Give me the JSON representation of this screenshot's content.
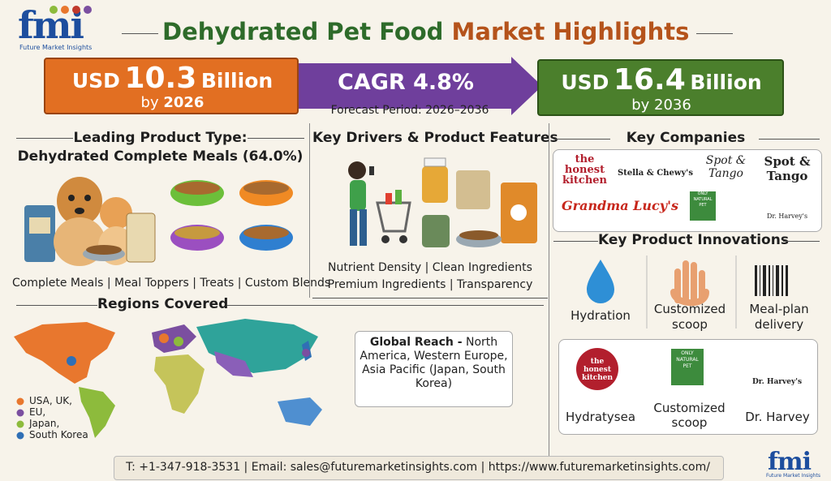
{
  "header": {
    "logo_text": "fmi",
    "logo_tagline": "Future Market Insights",
    "title_main": "Dehydrated Pet Food",
    "title_accent": "Market Highlights"
  },
  "banner": {
    "current": {
      "currency": "USD",
      "value": "10.3",
      "unit": "Billion",
      "by": "by",
      "year": "2026"
    },
    "cagr": "CAGR 4.8%",
    "forecast_period": "Forecast Period: 2026–2036",
    "future": {
      "currency": "USD",
      "value": "16.4",
      "unit": "Billion",
      "by_year": "by 2036"
    }
  },
  "product_type": {
    "heading": "Leading Product Type:",
    "leading": "Dehydrated Complete Meals (64.0%)",
    "types": "Complete Meals | Meal Toppers | Treats | Custom Blends"
  },
  "drivers": {
    "heading": "Key Drivers & Product Features",
    "line1": "Nutrient Density | Clean Ingredients",
    "line2": "Premium Ingredients | Transparency"
  },
  "companies": {
    "heading": "Key Companies",
    "logos": [
      "the honest kitchen",
      "Stella & Chewy's",
      "Spot & Tango",
      "Spot & Tango",
      "Grandma Lucy's",
      "ONLY NATURAL PET",
      "Dr. Harvey's"
    ]
  },
  "innovations": {
    "heading": "Key Product Innovations",
    "items": [
      "Hydration",
      "Customized scoop",
      "Meal-plan delivery"
    ]
  },
  "brands": {
    "logos": [
      "the honest kitchen",
      "ONLY NATURAL PET",
      "Dr. Harvey's"
    ],
    "labels": [
      "Hydratysea",
      "Customized scoop",
      "Dr. Harvey"
    ]
  },
  "regions": {
    "heading": "Regions Covered",
    "legend": [
      "USA, UK,",
      "EU,",
      "Japan,",
      "South Korea"
    ],
    "reach_label": "Global Reach -",
    "reach_text": "North America, Western Europe, Asia Pacific (Japan, South Korea)"
  },
  "footer": {
    "contact": "T: +1-347-918-3531 | Email: sales@futuremarketinsights.com | https://www.futuremarketinsights.com/",
    "logo_text": "fmi",
    "logo_tagline": "Future Market Insights"
  }
}
